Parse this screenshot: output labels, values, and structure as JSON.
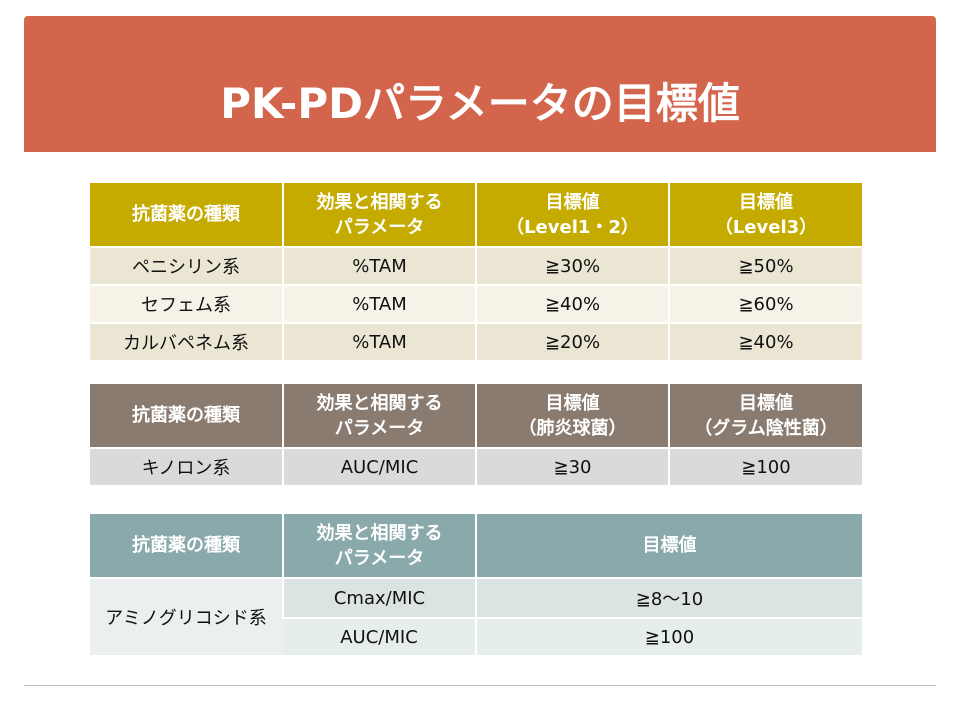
{
  "title": "PK-PDパラメータの目標値",
  "table1": {
    "headers": [
      "抗菌薬の種類",
      "効果と相関する\nパラメータ",
      "目標値\n（Level1・2）",
      "目標値\n（Level3）"
    ],
    "rows": [
      [
        "ペニシリン系",
        "%TAM",
        "≧30%",
        "≧50%"
      ],
      [
        "セフェム系",
        "%TAM",
        "≧40%",
        "≧60%"
      ],
      [
        "カルバペネム系",
        "%TAM",
        "≧20%",
        "≧40%"
      ]
    ]
  },
  "table2": {
    "headers": [
      "抗菌薬の種類",
      "効果と相関する\nパラメータ",
      "目標値\n（肺炎球菌）",
      "目標値\n（グラム陰性菌）"
    ],
    "rows": [
      [
        "キノロン系",
        "AUC/MIC",
        "≧30",
        "≧100"
      ]
    ]
  },
  "table3": {
    "headers": [
      "抗菌薬の種類",
      "効果と相関する\nパラメータ",
      "目標値"
    ],
    "group_label": "アミノグリコシド系",
    "rows": [
      [
        "Cmax/MIC",
        "≧8～10"
      ],
      [
        "AUC/MIC",
        "≧100"
      ]
    ]
  },
  "colors": {
    "title_bg": "#d2654c",
    "table1_header": "#c5aa00",
    "table2_header": "#8a7b70",
    "table3_header": "#8aa9aa"
  }
}
